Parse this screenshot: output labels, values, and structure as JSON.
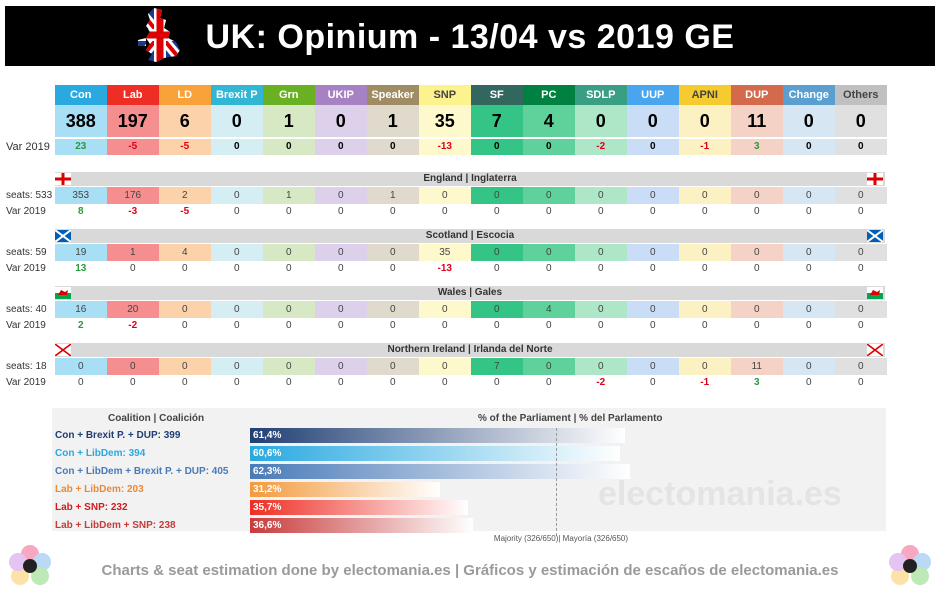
{
  "title": "UK: Opinium - 13/04 vs 2019 GE",
  "footer": "Charts & seat estimation done by electomania.es | Gráficos y estimación de escaños de electomania.es",
  "watermark": "electomania.es",
  "chart_data": {
    "type": "table",
    "parties": [
      {
        "name": "Con",
        "seats": 388,
        "var": "23",
        "head": "#29a9e0",
        "light": "#a9dff5",
        "var_color": "#2a9a3a"
      },
      {
        "name": "Lab",
        "seats": 197,
        "var": "-5",
        "head": "#ee2e24",
        "light": "#f58f8f",
        "var_color": "#e0001b"
      },
      {
        "name": "LD",
        "seats": 6,
        "var": "-5",
        "head": "#f9a23a",
        "light": "#fcd2aa",
        "var_color": "#e0001b"
      },
      {
        "name": "Brexit P",
        "seats": 0,
        "var": "0",
        "head": "#31b7d4",
        "light": "#d5eef4",
        "var_color": "#000"
      },
      {
        "name": "Grn",
        "seats": 1,
        "var": "0",
        "head": "#6ab023",
        "light": "#d6e9c4",
        "var_color": "#000"
      },
      {
        "name": "UKIP",
        "seats": 0,
        "var": "0",
        "head": "#a782c3",
        "light": "#dcd0ea",
        "var_color": "#000"
      },
      {
        "name": "Speaker",
        "seats": 1,
        "var": "0",
        "head": "#a08c64",
        "light": "#e0dacd",
        "var_color": "#000"
      },
      {
        "name": "SNP",
        "seats": 35,
        "var": "-13",
        "head": "#fdf38e",
        "light": "#fdf9cd",
        "var_color": "#e0001b"
      },
      {
        "name": "SF",
        "seats": 7,
        "var": "0",
        "head": "#326760",
        "light": "#33c486",
        "var_color": "#000"
      },
      {
        "name": "PC",
        "seats": 4,
        "var": "0",
        "head": "#008142",
        "light": "#5fd19b",
        "var_color": "#000"
      },
      {
        "name": "SDLP",
        "seats": 0,
        "var": "-2",
        "head": "#3a9e84",
        "light": "#aee7c8",
        "var_color": "#e0001b"
      },
      {
        "name": "UUP",
        "seats": 0,
        "var": "0",
        "head": "#48a5ee",
        "light": "#c9ddf6",
        "var_color": "#000"
      },
      {
        "name": "APNI",
        "seats": 0,
        "var": "-1",
        "head": "#f6cb2f",
        "light": "#fcf1c3",
        "var_color": "#e0001b"
      },
      {
        "name": "DUP",
        "seats": 11,
        "var": "3",
        "head": "#d46a4c",
        "light": "#f5d2c6",
        "var_color": "#2a9a3a"
      },
      {
        "name": "Change UK",
        "seats": 0,
        "var": "0",
        "head": "#5a9fcf",
        "light": "#d6e6f2",
        "var_color": "#000"
      },
      {
        "name": "Others",
        "seats": 0,
        "var": "0",
        "head": "#c0c0c0",
        "light": "#e0e0e0",
        "var_color": "#000"
      }
    ],
    "var_label": "Var 2019",
    "nations": [
      {
        "name": "England | Inglaterra",
        "seats_label": "seats: 533",
        "flag": "england",
        "seats": [
          353,
          176,
          2,
          0,
          1,
          0,
          1,
          0,
          0,
          0,
          0,
          0,
          0,
          0,
          0,
          0
        ],
        "var": [
          "8",
          "-3",
          "-5",
          "0",
          "0",
          "0",
          "0",
          "0",
          "0",
          "0",
          "0",
          "0",
          "0",
          "0",
          "0",
          "0"
        ]
      },
      {
        "name": "Scotland | Escocia",
        "seats_label": "seats: 59",
        "flag": "scotland",
        "seats": [
          19,
          1,
          4,
          0,
          0,
          0,
          0,
          35,
          0,
          0,
          0,
          0,
          0,
          0,
          0,
          0
        ],
        "var": [
          "13",
          "0",
          "0",
          "0",
          "0",
          "0",
          "0",
          "-13",
          "0",
          "0",
          "0",
          "0",
          "0",
          "0",
          "0",
          "0"
        ]
      },
      {
        "name": "Wales | Gales",
        "seats_label": "seats: 40",
        "flag": "wales",
        "seats": [
          16,
          20,
          0,
          0,
          0,
          0,
          0,
          0,
          0,
          4,
          0,
          0,
          0,
          0,
          0,
          0
        ],
        "var": [
          "2",
          "-2",
          "0",
          "0",
          "0",
          "0",
          "0",
          "0",
          "0",
          "0",
          "0",
          "0",
          "0",
          "0",
          "0",
          "0"
        ]
      },
      {
        "name": "Northern Ireland | Irlanda del Norte",
        "seats_label": "seats: 18",
        "flag": "ni",
        "seats": [
          0,
          0,
          0,
          0,
          0,
          0,
          0,
          0,
          7,
          0,
          0,
          0,
          0,
          11,
          0,
          0
        ],
        "var": [
          "0",
          "0",
          "0",
          "0",
          "0",
          "0",
          "0",
          "0",
          "0",
          "0",
          "-2",
          "0",
          "-1",
          "3",
          "0",
          "0"
        ]
      }
    ],
    "coalitions_header": "Coalition | Coalición",
    "percent_header": "% of the Parliament | % del Parlamento",
    "coalitions": [
      {
        "label": "Con + Brexit P. + DUP: 399",
        "pct": 61.4,
        "pct_label": "61,4%",
        "color": "#1f3e73",
        "grad": "#203f74",
        "label_color": "#1f3e73"
      },
      {
        "label": "Con + LibDem: 394",
        "pct": 60.6,
        "pct_label": "60,6%",
        "color": "#29a9e0",
        "grad": "#29a9e0",
        "label_color": "#29a9e0"
      },
      {
        "label": "Con + LibDem + Brexit P. + DUP: 405",
        "pct": 62.3,
        "pct_label": "62,3%",
        "color": "#4a7ab8",
        "grad": "#4a7ab8",
        "label_color": "#4a7ab8"
      },
      {
        "label": "Lab + LibDem: 203",
        "pct": 31.2,
        "pct_label": "31,2%",
        "color": "#f39a3c",
        "grad": "#f39a3c",
        "label_color": "#e9893a"
      },
      {
        "label": "Lab + SNP: 232",
        "pct": 35.7,
        "pct_label": "35,7%",
        "color": "#ee2e24",
        "grad": "#ee2e24",
        "label_color": "#d41b1b"
      },
      {
        "label": "Lab + LibDem + SNP: 238",
        "pct": 36.6,
        "pct_label": "36,6%",
        "color": "#c73b3b",
        "grad": "#c73b3b",
        "label_color": "#c73b3b"
      }
    ],
    "majority_label": "Majority (326/650)| Mayoría (326/650)",
    "majority_pct": 50.15
  }
}
